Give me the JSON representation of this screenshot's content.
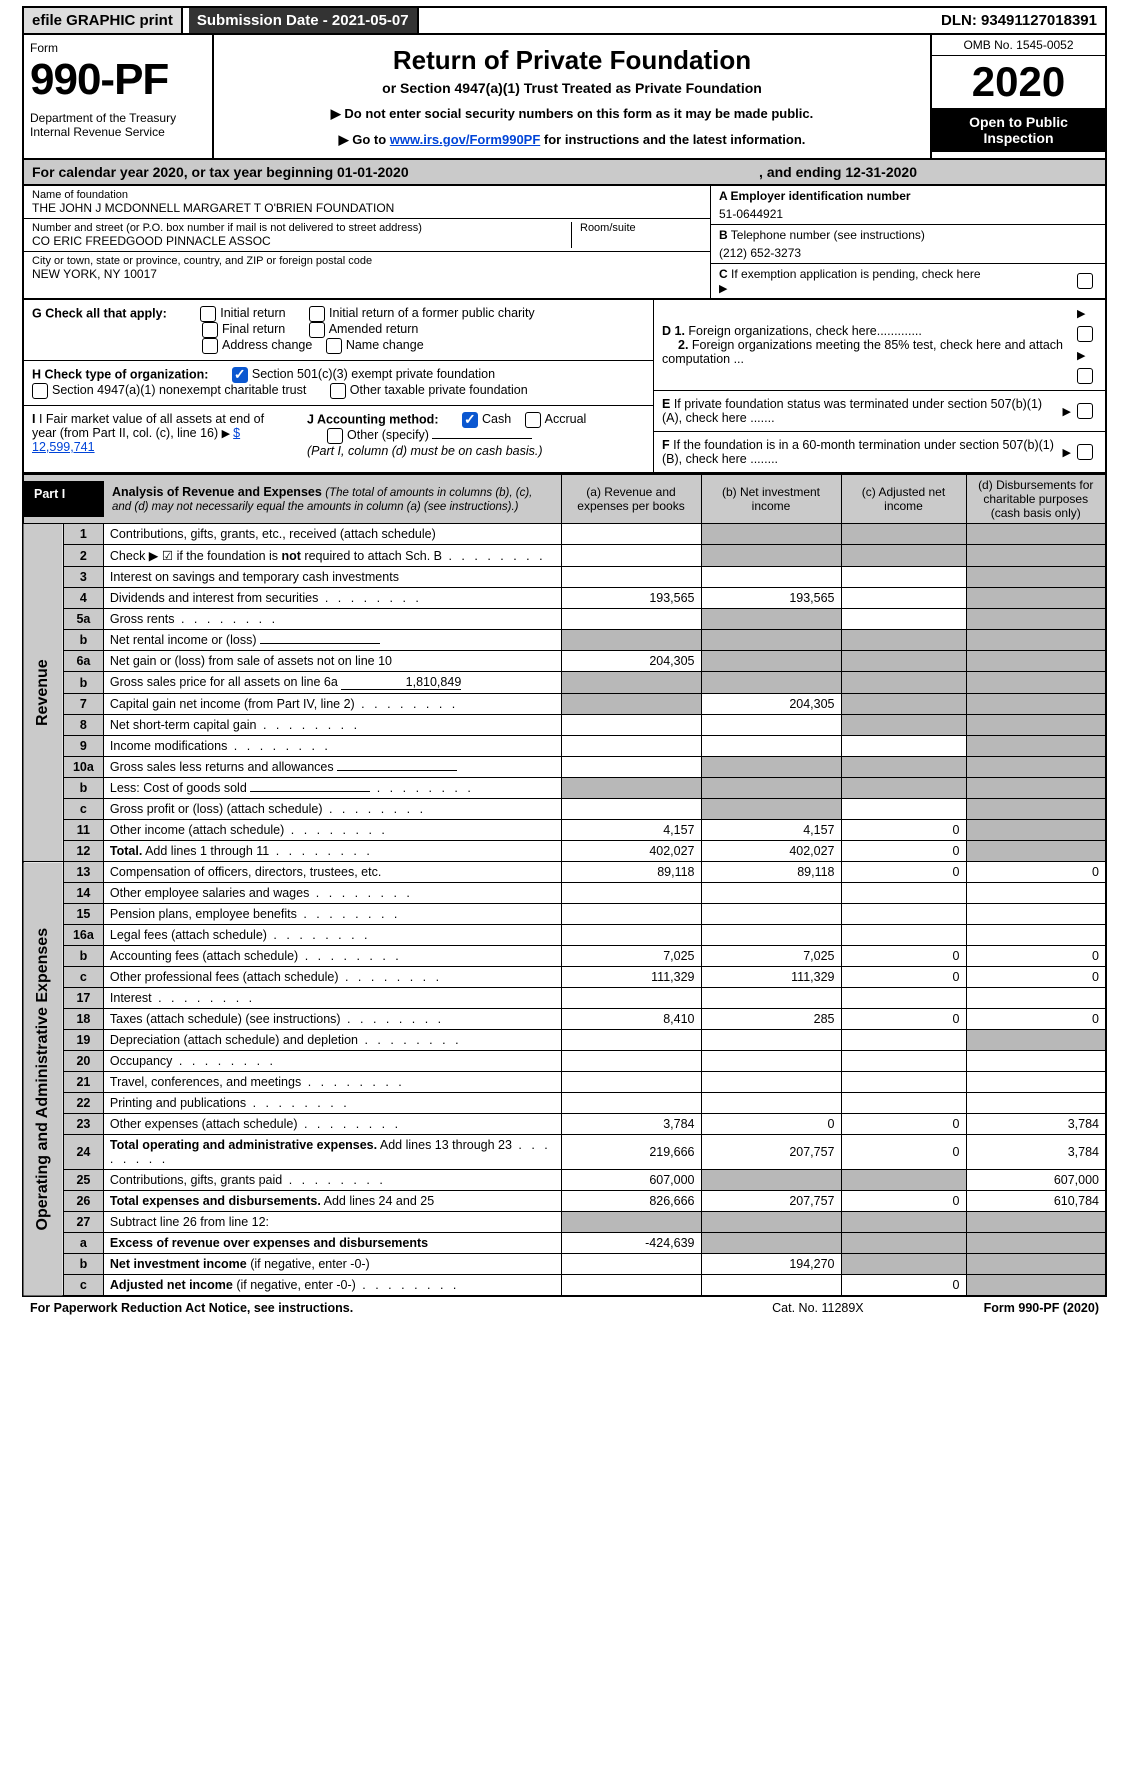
{
  "topbar": {
    "efile": "efile GRAPHIC print",
    "submission": "Submission Date - 2021-05-07",
    "dln": "DLN: 93491127018391"
  },
  "header": {
    "form_word": "Form",
    "form_num": "990-PF",
    "dept": "Department of the Treasury\nInternal Revenue Service",
    "title": "Return of Private Foundation",
    "subtitle": "or Section 4947(a)(1) Trust Treated as Private Foundation",
    "note1": "Do not enter social security numbers on this form as it may be made public.",
    "note2_pre": "Go to ",
    "note2_link": "www.irs.gov/Form990PF",
    "note2_post": " for instructions and the latest information.",
    "omb": "OMB No. 1545-0052",
    "year": "2020",
    "open": "Open to Public Inspection"
  },
  "calyear": {
    "text": "For calendar year 2020, or tax year beginning 01-01-2020",
    "end": ", and ending 12-31-2020"
  },
  "abc": {
    "name_lbl": "Name of foundation",
    "name": "THE JOHN J MCDONNELL MARGARET T O'BRIEN FOUNDATION",
    "addr_lbl": "Number and street (or P.O. box number if mail is not delivered to street address)",
    "addr": "CO ERIC FREEDGOOD PINNACLE ASSOC",
    "room_lbl": "Room/suite",
    "city_lbl": "City or town, state or province, country, and ZIP or foreign postal code",
    "city": "NEW YORK, NY  10017",
    "a_lbl": "A Employer identification number",
    "a_val": "51-0644921",
    "b_lbl": "B",
    "b_txt": "Telephone number (see instructions)",
    "b_val": "(212) 652-3273",
    "c_lbl": "C",
    "c_txt": "If exemption application is pending, check here"
  },
  "g": {
    "label": "G Check all that apply:",
    "opts": [
      "Initial return",
      "Initial return of a former public charity",
      "Final return",
      "Amended return",
      "Address change",
      "Name change"
    ]
  },
  "h": {
    "label": "H Check type of organization:",
    "o1": "Section 501(c)(3) exempt private foundation",
    "o2": "Section 4947(a)(1) nonexempt charitable trust",
    "o3": "Other taxable private foundation"
  },
  "i": {
    "label": "I Fair market value of all assets at end of year (from Part II, col. (c), line 16)",
    "val": "$  12,599,741"
  },
  "j": {
    "label": "J Accounting method:",
    "cash": "Cash",
    "accrual": "Accrual",
    "other": "Other (specify)",
    "note": "(Part I, column (d) must be on cash basis.)"
  },
  "d": {
    "d1": "D 1. Foreign organizations, check here.............",
    "d2": "2. Foreign organizations meeting the 85% test, check here and attach computation ..."
  },
  "e": {
    "txt": "E  If private foundation status was terminated under section 507(b)(1)(A), check here ......."
  },
  "f": {
    "txt": "F  If the foundation is in a 60-month termination under section 507(b)(1)(B), check here ........"
  },
  "part1": {
    "label": "Part I",
    "title": "Analysis of Revenue and Expenses",
    "title_note": "(The total of amounts in columns (b), (c), and (d) may not necessarily equal the amounts in column (a) (see instructions).)",
    "cols": {
      "a": "(a)   Revenue and expenses per books",
      "b": "(b)   Net investment income",
      "c": "(c)   Adjusted net income",
      "d": "(d)   Disbursements for charitable purposes (cash basis only)"
    },
    "vlabel_rev": "Revenue",
    "vlabel_exp": "Operating and Administrative Expenses",
    "rows": [
      {
        "n": "1",
        "d": "Contributions, gifts, grants, etc., received (attach schedule)"
      },
      {
        "n": "2",
        "d": "Check ▶ ☑ if the foundation is <b>not</b> required to attach Sch. B",
        "dots": true
      },
      {
        "n": "3",
        "d": "Interest on savings and temporary cash investments"
      },
      {
        "n": "4",
        "d": "Dividends and interest from securities",
        "dots": true,
        "a": "193,565",
        "b": "193,565"
      },
      {
        "n": "5a",
        "d": "Gross rents",
        "dots": true
      },
      {
        "n": "b",
        "d": "Net rental income or (loss)",
        "inline": true
      },
      {
        "n": "6a",
        "d": "Net gain or (loss) from sale of assets not on line 10",
        "a": "204,305"
      },
      {
        "n": "b",
        "d": "Gross sales price for all assets on line 6a",
        "inline_val": "1,810,849"
      },
      {
        "n": "7",
        "d": "Capital gain net income (from Part IV, line 2)",
        "dots": true,
        "b": "204,305"
      },
      {
        "n": "8",
        "d": "Net short-term capital gain",
        "dots": true
      },
      {
        "n": "9",
        "d": "Income modifications",
        "dots": true
      },
      {
        "n": "10a",
        "d": "Gross sales less returns and allowances",
        "inline": true
      },
      {
        "n": "b",
        "d": "Less: Cost of goods sold",
        "dots": true,
        "inline": true
      },
      {
        "n": "c",
        "d": "Gross profit or (loss) (attach schedule)",
        "dots": true
      },
      {
        "n": "11",
        "d": "Other income (attach schedule)",
        "dots": true,
        "a": "4,157",
        "b": "4,157",
        "c": "0"
      },
      {
        "n": "12",
        "d": "<b>Total.</b> Add lines 1 through 11",
        "dots": true,
        "a": "402,027",
        "b": "402,027",
        "c": "0"
      },
      {
        "n": "13",
        "d": "Compensation of officers, directors, trustees, etc.",
        "a": "89,118",
        "b": "89,118",
        "c": "0",
        "dd": "0",
        "exp": true
      },
      {
        "n": "14",
        "d": "Other employee salaries and wages",
        "dots": true,
        "exp": true
      },
      {
        "n": "15",
        "d": "Pension plans, employee benefits",
        "dots": true,
        "exp": true
      },
      {
        "n": "16a",
        "d": "Legal fees (attach schedule)",
        "dots": true,
        "exp": true
      },
      {
        "n": "b",
        "d": "Accounting fees (attach schedule)",
        "dots": true,
        "a": "7,025",
        "b": "7,025",
        "c": "0",
        "dd": "0",
        "exp": true
      },
      {
        "n": "c",
        "d": "Other professional fees (attach schedule)",
        "dots": true,
        "a": "111,329",
        "b": "111,329",
        "c": "0",
        "dd": "0",
        "exp": true
      },
      {
        "n": "17",
        "d": "Interest",
        "dots": true,
        "exp": true
      },
      {
        "n": "18",
        "d": "Taxes (attach schedule) (see instructions)",
        "dots": true,
        "a": "8,410",
        "b": "285",
        "c": "0",
        "dd": "0",
        "exp": true
      },
      {
        "n": "19",
        "d": "Depreciation (attach schedule) and depletion",
        "dots": true,
        "exp": true
      },
      {
        "n": "20",
        "d": "Occupancy",
        "dots": true,
        "exp": true
      },
      {
        "n": "21",
        "d": "Travel, conferences, and meetings",
        "dots": true,
        "exp": true
      },
      {
        "n": "22",
        "d": "Printing and publications",
        "dots": true,
        "exp": true
      },
      {
        "n": "23",
        "d": "Other expenses (attach schedule)",
        "dots": true,
        "a": "3,784",
        "b": "0",
        "c": "0",
        "dd": "3,784",
        "exp": true
      },
      {
        "n": "24",
        "d": "<b>Total operating and administrative expenses.</b> Add lines 13 through 23",
        "dots": true,
        "a": "219,666",
        "b": "207,757",
        "c": "0",
        "dd": "3,784",
        "exp": true
      },
      {
        "n": "25",
        "d": "Contributions, gifts, grants paid",
        "dots": true,
        "a": "607,000",
        "dd": "607,000",
        "exp": true
      },
      {
        "n": "26",
        "d": "<b>Total expenses and disbursements.</b> Add lines 24 and 25",
        "a": "826,666",
        "b": "207,757",
        "c": "0",
        "dd": "610,784",
        "exp": true
      },
      {
        "n": "27",
        "d": "Subtract line 26 from line 12:",
        "exp": true
      },
      {
        "n": "a",
        "d": "<b>Excess of revenue over expenses and disbursements</b>",
        "a": "-424,639",
        "exp": true
      },
      {
        "n": "b",
        "d": "<b>Net investment income</b> (if negative, enter -0-)",
        "b": "194,270",
        "exp": true
      },
      {
        "n": "c",
        "d": "<b>Adjusted net income</b> (if negative, enter -0-)",
        "dots": true,
        "c": "0",
        "exp": true
      }
    ]
  },
  "footer": {
    "pra": "For Paperwork Reduction Act Notice, see instructions.",
    "cat": "Cat. No. 11289X",
    "form": "Form 990-PF (2020)"
  }
}
